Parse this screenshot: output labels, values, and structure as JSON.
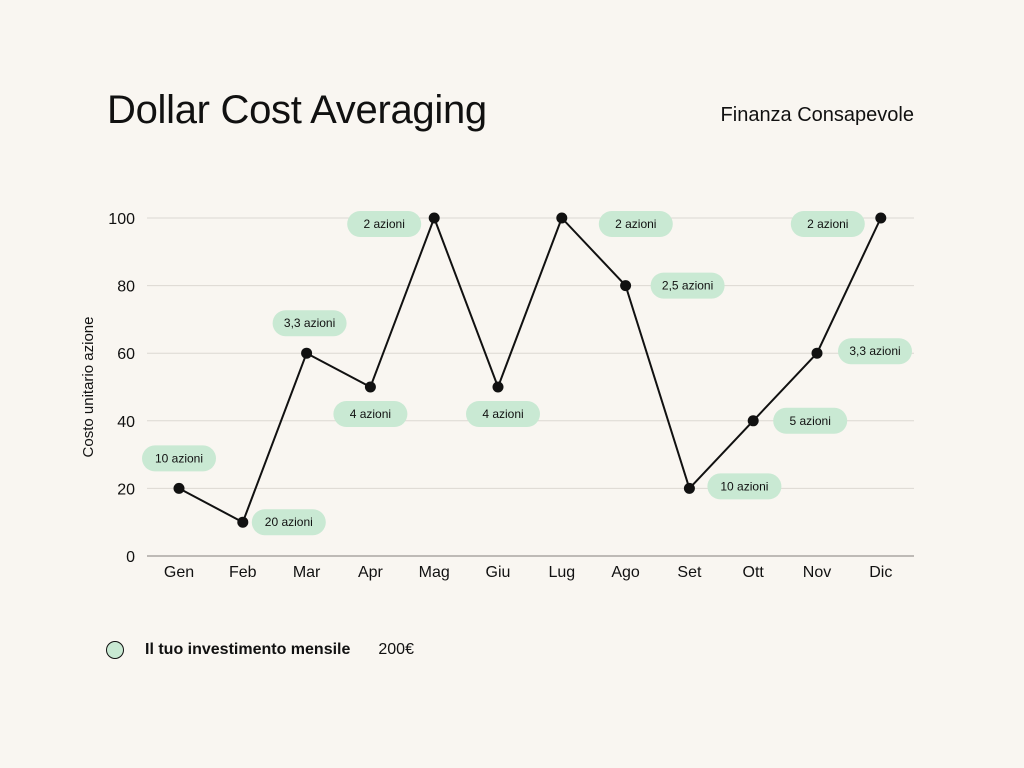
{
  "title": "Dollar Cost Averaging",
  "brand": "Finanza Consapevole",
  "colors": {
    "background": "#f9f6f1",
    "line": "#111111",
    "pill": "#c9e9d3",
    "grid": "#dcd8d2"
  },
  "legend": {
    "label": "Il tuo investimento mensile",
    "value": "200€"
  },
  "chart_data": {
    "type": "line",
    "categories": [
      "Gen",
      "Feb",
      "Mar",
      "Apr",
      "Mag",
      "Giu",
      "Lug",
      "Ago",
      "Set",
      "Ott",
      "Nov",
      "Dic"
    ],
    "values": [
      20,
      10,
      60,
      50,
      100,
      50,
      100,
      80,
      20,
      40,
      60,
      100
    ],
    "annotations": [
      "10 azioni",
      "20 azioni",
      "3,3 azioni",
      "4 azioni",
      "2 azioni",
      "4 azioni",
      "2 azioni",
      "2,5 azioni",
      "10 azioni",
      "5 azioni",
      "3,3 azioni",
      "2 azioni"
    ],
    "ylabel": "Costo unitario azione",
    "ylim": [
      0,
      100
    ],
    "yticks": [
      0,
      20,
      40,
      60,
      80,
      100
    ],
    "grid": true
  }
}
